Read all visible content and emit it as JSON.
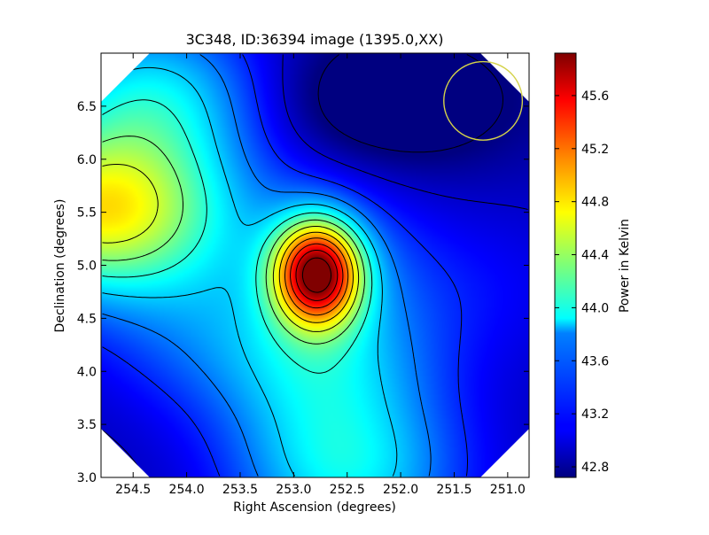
{
  "chart_data": {
    "type": "heatmap",
    "title": "3C348, ID:36394 image (1395.0,XX)",
    "xlabel": "Right Ascension (degrees)",
    "ylabel": "Declination (degrees)",
    "xlim": [
      254.8,
      250.8
    ],
    "ylim": [
      3.0,
      7.0
    ],
    "x_ticks": [
      "254.5",
      "254.0",
      "253.5",
      "253.0",
      "252.5",
      "252.0",
      "251.5",
      "251.0"
    ],
    "x_tick_values": [
      254.5,
      254.0,
      253.5,
      253.0,
      252.5,
      252.0,
      251.5,
      251.0
    ],
    "y_ticks": [
      "3.0",
      "3.5",
      "4.0",
      "4.5",
      "5.0",
      "5.5",
      "6.0",
      "6.5"
    ],
    "y_tick_values": [
      3.0,
      3.5,
      4.0,
      4.5,
      5.0,
      5.5,
      6.0,
      6.5
    ],
    "colorbar": {
      "label": "Power in Kelvin",
      "range": [
        42.72,
        45.92
      ],
      "ticks": [
        "42.8",
        "43.2",
        "43.6",
        "44.0",
        "44.4",
        "44.8",
        "45.2",
        "45.6"
      ],
      "tick_values": [
        42.8,
        43.2,
        43.6,
        44.0,
        44.4,
        44.8,
        45.2,
        45.6
      ],
      "colormap": "jet"
    },
    "peak": {
      "ra": 252.78,
      "dec": 4.93,
      "value": 45.9
    },
    "secondary_peak": {
      "ra": 254.8,
      "dec": 5.5,
      "value": 44.7
    },
    "minimum": {
      "ra": 252.1,
      "dec": 6.55,
      "value": 42.75
    },
    "features": [
      {
        "ra": 252.5,
        "dec": 3.0,
        "value": 43.8
      },
      {
        "ra": 252.7,
        "dec": 4.0,
        "value": 43.6
      },
      {
        "ra": 253.9,
        "dec": 4.4,
        "value": 43.3
      },
      {
        "ra": 251.3,
        "dec": 4.8,
        "value": 43.1
      },
      {
        "ra": 254.3,
        "dec": 6.6,
        "value": 43.8
      }
    ],
    "beam_circle": {
      "ra": 251.23,
      "dec": 6.55,
      "radius_deg": 0.37,
      "color": "#d4d24a"
    },
    "contour_count": 13,
    "grid": false
  }
}
